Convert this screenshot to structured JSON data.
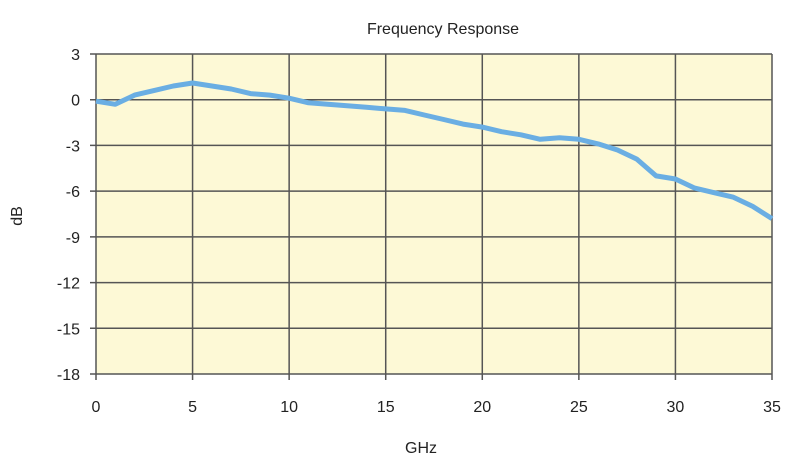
{
  "chart_data": {
    "type": "line",
    "title": "Frequency Response",
    "xlabel": "GHz",
    "ylabel": "dB",
    "xlim": [
      0,
      35
    ],
    "ylim": [
      -18,
      3
    ],
    "xticks": [
      0,
      5,
      10,
      15,
      20,
      25,
      30,
      35
    ],
    "yticks": [
      3,
      0,
      -3,
      -6,
      -9,
      -12,
      -15,
      -18
    ],
    "grid": true,
    "colors": {
      "plot_bg": "#fdf9d6",
      "line": "#6aaee3",
      "grid": "#555555"
    },
    "x": [
      0,
      1,
      2,
      3,
      4,
      5,
      6,
      7,
      8,
      9,
      10,
      11,
      12,
      13,
      14,
      15,
      16,
      17,
      18,
      19,
      20,
      21,
      22,
      23,
      24,
      25,
      26,
      27,
      28,
      29,
      30,
      31,
      32,
      33,
      34,
      35
    ],
    "series": [
      {
        "values": [
          -0.1,
          -0.3,
          0.3,
          0.6,
          0.9,
          1.1,
          0.9,
          0.7,
          0.4,
          0.3,
          0.1,
          -0.2,
          -0.3,
          -0.4,
          -0.5,
          -0.6,
          -0.7,
          -1.0,
          -1.3,
          -1.6,
          -1.8,
          -2.1,
          -2.3,
          -2.6,
          -2.5,
          -2.6,
          -2.9,
          -3.3,
          -3.9,
          -5.0,
          -5.2,
          -5.8,
          -6.1,
          -6.4,
          -7.0,
          -7.8
        ]
      }
    ]
  }
}
